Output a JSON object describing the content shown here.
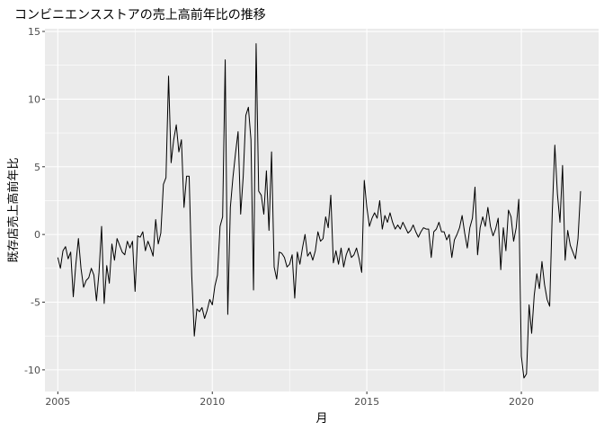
{
  "chart_data": {
    "type": "line",
    "title": "コンビニエンスストアの売上高前年比の推移",
    "xlabel": "月",
    "ylabel": "既存店売上高前年比",
    "x_ticks": [
      "2005",
      "2010",
      "2015",
      "2020"
    ],
    "y_ticks": [
      "-10",
      "-5",
      "0",
      "5",
      "10",
      "15"
    ],
    "xlim": [
      "2004-08",
      "2022-07"
    ],
    "ylim": [
      -11.6,
      15.2
    ],
    "grid": true,
    "legend": "none",
    "line_color": "#000000",
    "panel_background": "#ebebeb",
    "series": [
      {
        "x": [
          "2005-01",
          "2005-02",
          "2005-03",
          "2005-04",
          "2005-05",
          "2005-06",
          "2005-07",
          "2005-08",
          "2005-09",
          "2005-10",
          "2005-11",
          "2005-12",
          "2006-01",
          "2006-02",
          "2006-03",
          "2006-04",
          "2006-05",
          "2006-06",
          "2006-07",
          "2006-08",
          "2006-09",
          "2006-10",
          "2006-11",
          "2006-12",
          "2007-01",
          "2007-02",
          "2007-03",
          "2007-04",
          "2007-05",
          "2007-06",
          "2007-07",
          "2007-08",
          "2007-09",
          "2007-10",
          "2007-11",
          "2007-12",
          "2008-01",
          "2008-02",
          "2008-03",
          "2008-04",
          "2008-05",
          "2008-06",
          "2008-07",
          "2008-08",
          "2008-09",
          "2008-10",
          "2008-11",
          "2008-12",
          "2009-01",
          "2009-02",
          "2009-03",
          "2009-04",
          "2009-05",
          "2009-06",
          "2009-07",
          "2009-08",
          "2009-09",
          "2009-10",
          "2009-11",
          "2009-12",
          "2010-01",
          "2010-02",
          "2010-03",
          "2010-04",
          "2010-05",
          "2010-06",
          "2010-07",
          "2010-08",
          "2010-09",
          "2010-10",
          "2010-11",
          "2010-12",
          "2011-01",
          "2011-02",
          "2011-03",
          "2011-04",
          "2011-05",
          "2011-06",
          "2011-07",
          "2011-08",
          "2011-09",
          "2011-10",
          "2011-11",
          "2011-12",
          "2012-01",
          "2012-02",
          "2012-03",
          "2012-04",
          "2012-05",
          "2012-06",
          "2012-07",
          "2012-08",
          "2012-09",
          "2012-10",
          "2012-11",
          "2012-12",
          "2013-01",
          "2013-02",
          "2013-03",
          "2013-04",
          "2013-05",
          "2013-06",
          "2013-07",
          "2013-08",
          "2013-09",
          "2013-10",
          "2013-11",
          "2013-12",
          "2014-01",
          "2014-02",
          "2014-03",
          "2014-04",
          "2014-05",
          "2014-06",
          "2014-07",
          "2014-08",
          "2014-09",
          "2014-10",
          "2014-11",
          "2014-12",
          "2015-01",
          "2015-02",
          "2015-03",
          "2015-04",
          "2015-05",
          "2015-06",
          "2015-07",
          "2015-08",
          "2015-09",
          "2015-10",
          "2015-11",
          "2015-12",
          "2016-01",
          "2016-02",
          "2016-03",
          "2016-04",
          "2016-05",
          "2016-06",
          "2016-07",
          "2016-08",
          "2016-09",
          "2016-10",
          "2016-11",
          "2016-12",
          "2017-01",
          "2017-02",
          "2017-03",
          "2017-04",
          "2017-05",
          "2017-06",
          "2017-07",
          "2017-08",
          "2017-09",
          "2017-10",
          "2017-11",
          "2017-12",
          "2018-01",
          "2018-02",
          "2018-03",
          "2018-04",
          "2018-05",
          "2018-06",
          "2018-07",
          "2018-08",
          "2018-09",
          "2018-10",
          "2018-11",
          "2018-12",
          "2019-01",
          "2019-02",
          "2019-03",
          "2019-04",
          "2019-05",
          "2019-06",
          "2019-07",
          "2019-08",
          "2019-09",
          "2019-10",
          "2019-11",
          "2019-12",
          "2020-01",
          "2020-02",
          "2020-03",
          "2020-04",
          "2020-05",
          "2020-06",
          "2020-07",
          "2020-08",
          "2020-09",
          "2020-10",
          "2020-11",
          "2020-12",
          "2021-01",
          "2021-02",
          "2021-03",
          "2021-04",
          "2021-05",
          "2021-06",
          "2021-07",
          "2021-08",
          "2021-09",
          "2021-10",
          "2021-11",
          "2021-12"
        ],
        "values": [
          -1.7,
          -2.5,
          -1.2,
          -0.9,
          -1.8,
          -1.3,
          -4.6,
          -2.2,
          -0.3,
          -2.5,
          -3.9,
          -3.4,
          -3.2,
          -2.5,
          -3.0,
          -4.9,
          -2.8,
          0.6,
          -5.1,
          -2.3,
          -3.6,
          -0.7,
          -1.9,
          -0.3,
          -0.8,
          -1.3,
          -1.5,
          -0.5,
          -1.0,
          -0.5,
          -4.2,
          -0.1,
          -0.2,
          0.2,
          -1.2,
          -0.5,
          -1.0,
          -1.6,
          1.1,
          -0.7,
          0.1,
          3.7,
          4.2,
          11.7,
          5.3,
          7.0,
          8.1,
          6.1,
          7.0,
          2.0,
          4.3,
          4.3,
          -3.0,
          -7.5,
          -5.5,
          -5.7,
          -5.4,
          -6.2,
          -5.6,
          -4.8,
          -5.2,
          -3.8,
          -3.0,
          0.6,
          1.3,
          12.9,
          -5.9,
          2.0,
          4.2,
          6.0,
          7.6,
          1.5,
          4.3,
          8.8,
          9.4,
          7.0,
          -4.1,
          14.1,
          3.2,
          2.9,
          1.5,
          4.7,
          0.3,
          6.1,
          -2.4,
          -3.3,
          -1.3,
          -1.4,
          -1.7,
          -2.4,
          -2.2,
          -1.5,
          -4.7,
          -1.3,
          -2.2,
          -1.0,
          0.0,
          -1.6,
          -1.3,
          -1.9,
          -1.2,
          0.2,
          -0.5,
          -0.3,
          1.3,
          0.5,
          2.9,
          -2.1,
          -1.2,
          -2.2,
          -1.0,
          -2.4,
          -1.5,
          -1.0,
          -1.7,
          -1.5,
          -1.0,
          -1.8,
          -2.8,
          4.0,
          2.0,
          0.6,
          1.2,
          1.6,
          1.2,
          2.5,
          0.4,
          1.4,
          0.9,
          1.6,
          0.9,
          0.4,
          0.7,
          0.4,
          0.9,
          0.5,
          0.1,
          0.3,
          0.7,
          0.2,
          -0.2,
          0.2,
          0.5,
          0.4,
          0.4,
          -1.7,
          0.2,
          0.4,
          0.9,
          0.2,
          0.2,
          -0.4,
          0.0,
          -1.7,
          -0.4,
          0.0,
          0.5,
          1.4,
          0.1,
          -1.0,
          0.5,
          1.2,
          3.5,
          -1.5,
          0.5,
          1.3,
          0.6,
          2.0,
          0.6,
          -0.1,
          0.4,
          1.2,
          -2.6,
          0.5,
          -1.2,
          1.8,
          1.3,
          -0.5,
          0.5,
          2.6,
          -9.0,
          -10.6,
          -10.3,
          -5.2,
          -7.3,
          -4.5,
          -2.9,
          -4.0,
          -2.0,
          -3.7,
          -4.8,
          -5.3,
          1.6,
          6.6,
          3.0,
          0.9,
          5.1,
          -1.9,
          0.3,
          -0.8,
          -1.3,
          -1.8,
          -0.3,
          3.2
        ]
      }
    ]
  }
}
